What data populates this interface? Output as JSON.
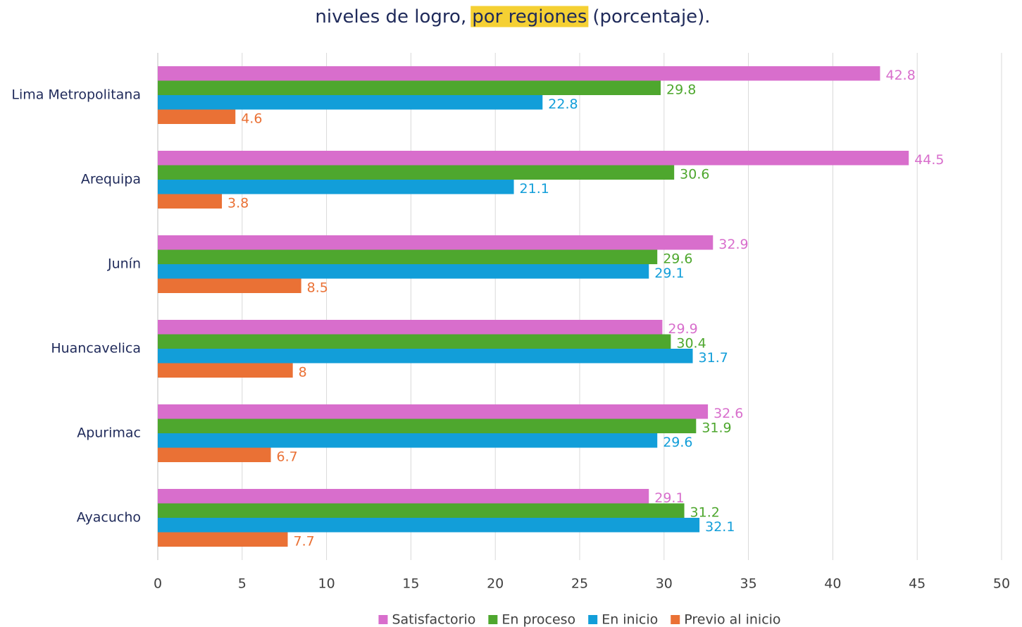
{
  "chart_data": {
    "type": "bar",
    "orientation": "horizontal",
    "title_parts": [
      "niveles de logro,",
      "por regiones",
      "(porcentaje)."
    ],
    "title_highlight": {
      "part": 1,
      "color": "#f5d033"
    },
    "categories": [
      "Lima Metropolitana",
      "Arequipa",
      "Junín",
      "Huancavelica",
      "Apurimac",
      "Ayacucho"
    ],
    "series": [
      {
        "name": "Satisfactorio",
        "color": "#d86ecc",
        "values": [
          42.8,
          44.5,
          32.9,
          29.9,
          32.6,
          29.1
        ]
      },
      {
        "name": "En proceso",
        "color": "#4ea72e",
        "values": [
          29.8,
          30.6,
          29.6,
          30.4,
          31.9,
          31.2
        ]
      },
      {
        "name": "En inicio",
        "color": "#129ed9",
        "values": [
          22.8,
          21.1,
          29.1,
          31.7,
          29.6,
          32.1
        ]
      },
      {
        "name": "Previo al inicio",
        "color": "#ea7135",
        "values": [
          4.6,
          3.8,
          8.5,
          8,
          6.7,
          7.7
        ]
      }
    ],
    "xlim": [
      0,
      50
    ],
    "xticks": [
      0,
      5,
      10,
      15,
      20,
      25,
      30,
      35,
      40,
      45,
      50
    ],
    "grid": true,
    "data_labels": true,
    "legend": "bottom"
  }
}
